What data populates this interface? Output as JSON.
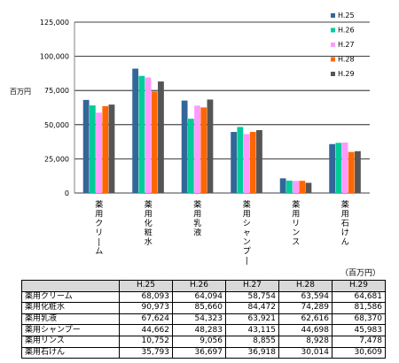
{
  "chart_data": {
    "type": "bar",
    "categories": [
      "薬用クリーム",
      "薬用化粧水",
      "薬用乳液",
      "薬用シャンプー",
      "薬用リンス",
      "薬用石けん"
    ],
    "series": [
      {
        "name": "H.25",
        "color": "#336699",
        "values": [
          68093,
          90973,
          67624,
          44662,
          10752,
          35793
        ]
      },
      {
        "name": "H.26",
        "color": "#00cc99",
        "values": [
          64094,
          85660,
          54323,
          48283,
          9056,
          36697
        ]
      },
      {
        "name": "H.27",
        "color": "#ff99ff",
        "values": [
          58754,
          84472,
          63921,
          43115,
          8855,
          36918
        ]
      },
      {
        "name": "H.28",
        "color": "#ff6600",
        "values": [
          63594,
          74289,
          62616,
          44698,
          8928,
          30014
        ]
      },
      {
        "name": "H.29",
        "color": "#555555",
        "values": [
          64681,
          81586,
          68370,
          45983,
          7478,
          30609
        ]
      }
    ],
    "ylabel": "百万円",
    "ylim": [
      0,
      125000
    ],
    "yticks": [
      0,
      25000,
      50000,
      75000,
      100000,
      125000
    ],
    "ytick_labels": [
      "0",
      "25,000",
      "50,000",
      "75,000",
      "100,000",
      "125,000"
    ],
    "grid": true,
    "legend": "right"
  },
  "table": {
    "unit": "（百万円）",
    "headers": [
      "",
      "H.25",
      "H.26",
      "H.27",
      "H.28",
      "H.29"
    ],
    "rows": [
      {
        "label": "薬用クリーム",
        "values": [
          "68,093",
          "64,094",
          "58,754",
          "63,594",
          "64,681"
        ]
      },
      {
        "label": "薬用化粧水",
        "values": [
          "90,973",
          "85,660",
          "84,472",
          "74,289",
          "81,586"
        ]
      },
      {
        "label": "薬用乳液",
        "values": [
          "67,624",
          "54,323",
          "63,921",
          "62,616",
          "68,370"
        ]
      },
      {
        "label": "薬用シャンプー",
        "values": [
          "44,662",
          "48,283",
          "43,115",
          "44,698",
          "45,983"
        ]
      },
      {
        "label": "薬用リンス",
        "values": [
          "10,752",
          "9,056",
          "8,855",
          "8,928",
          "7,478"
        ]
      },
      {
        "label": "薬用石けん",
        "values": [
          "35,793",
          "36,697",
          "36,918",
          "30,014",
          "30,609"
        ]
      }
    ]
  }
}
